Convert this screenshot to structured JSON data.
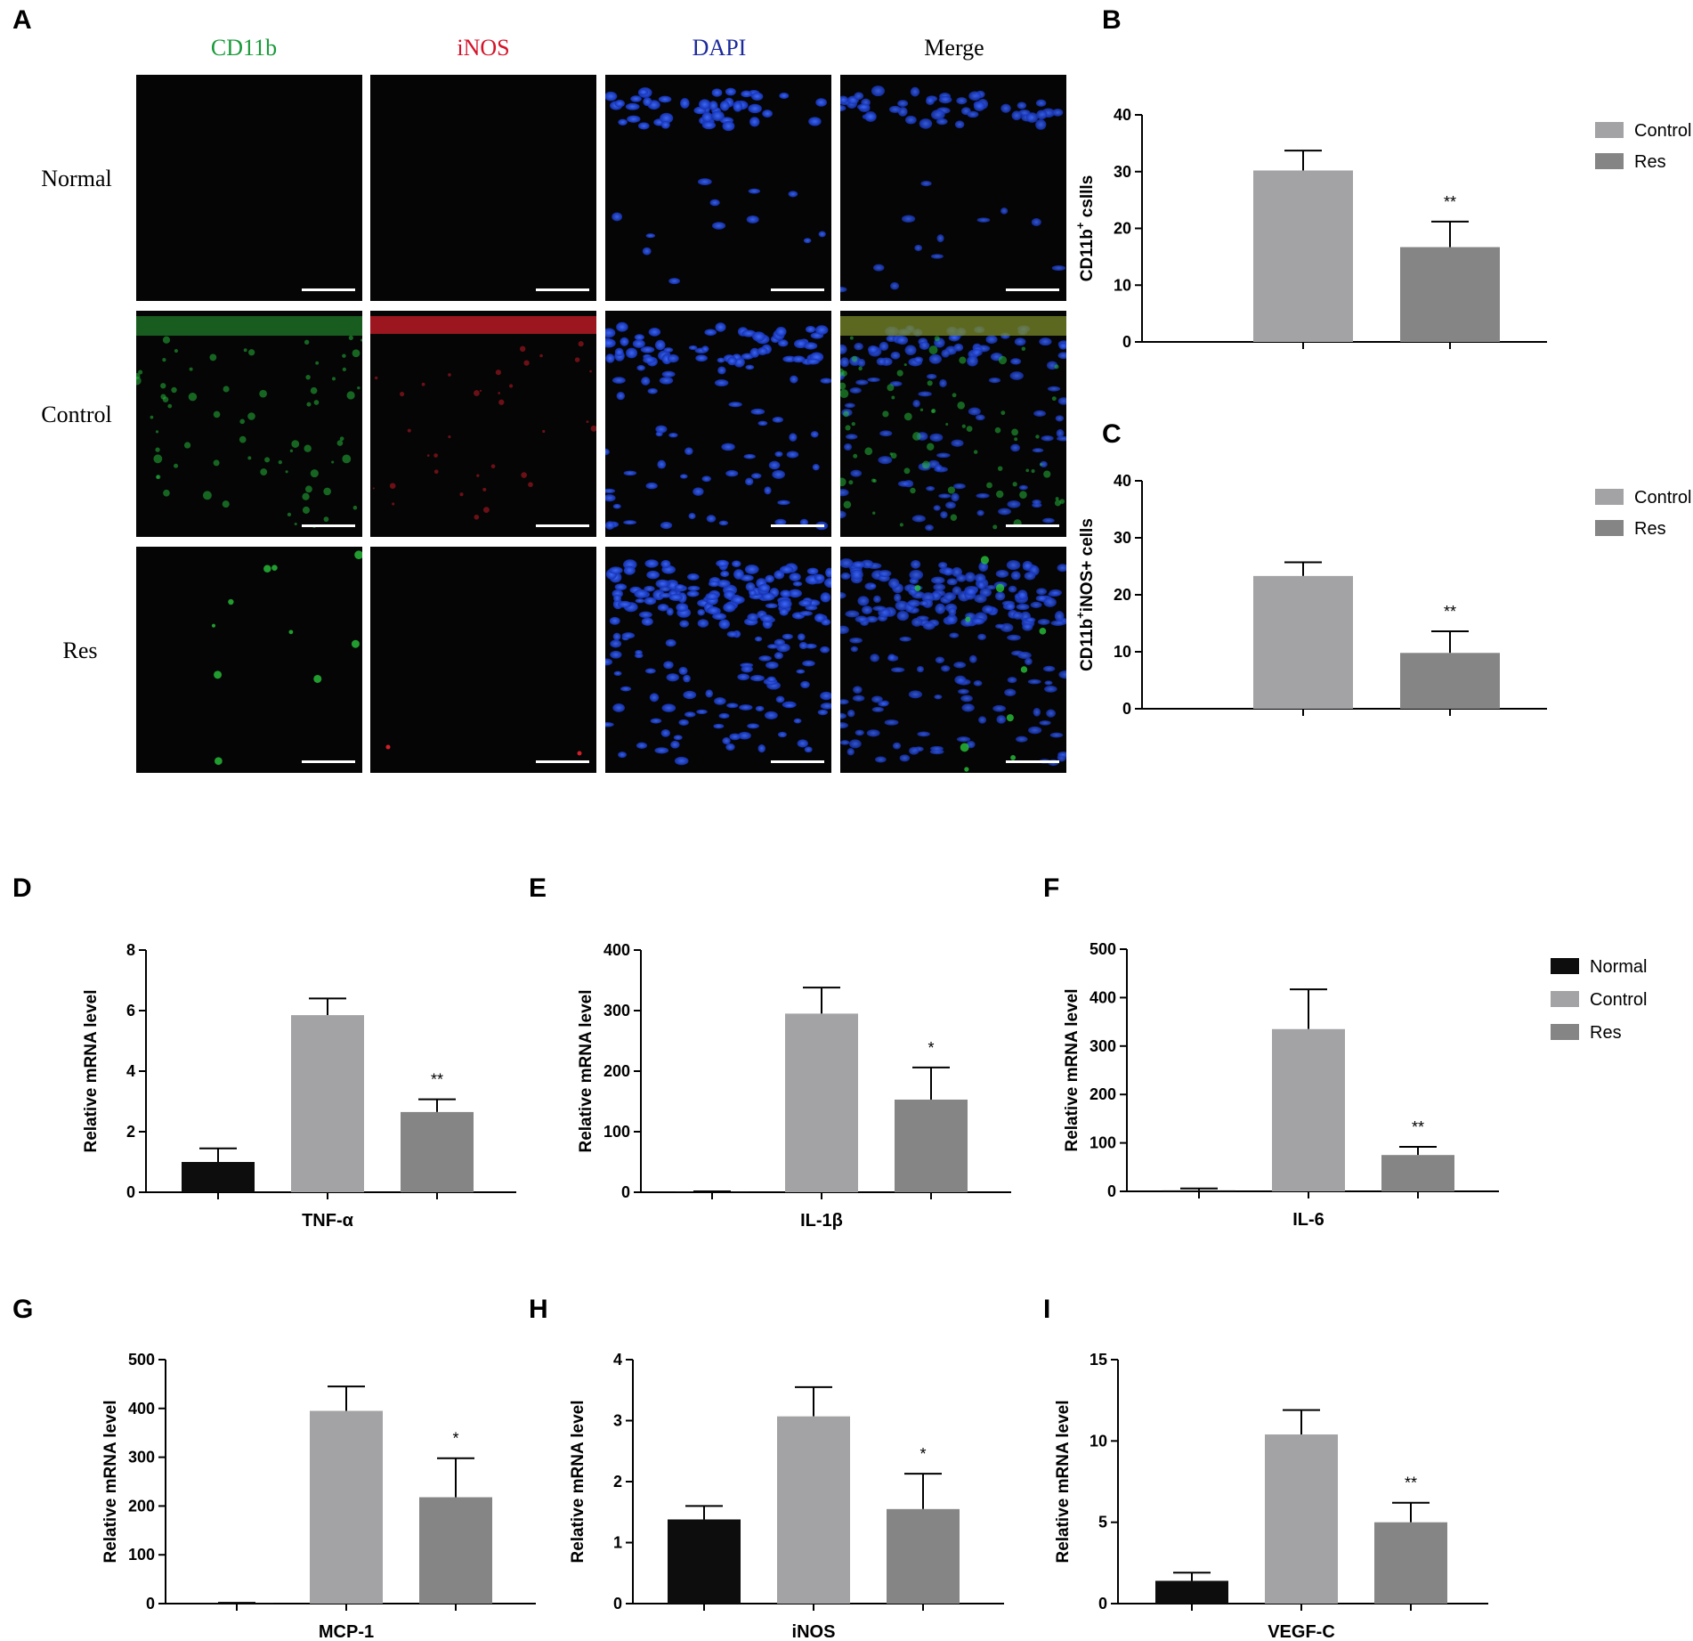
{
  "figure": {
    "panel_labels": [
      "A",
      "B",
      "C",
      "D",
      "E",
      "F",
      "G",
      "H",
      "I"
    ],
    "micro_columns": [
      {
        "label": "CD11b",
        "color": "#1a9a3a"
      },
      {
        "label": "iNOS",
        "color": "#d4142a"
      },
      {
        "label": "DAPI",
        "color": "#1c2a9c"
      },
      {
        "label": "Merge",
        "color": "#000000"
      }
    ],
    "micro_rows": [
      "Normal",
      "Control",
      "Res"
    ]
  },
  "colors": {
    "Normal": "#0d0d0d",
    "Control": "#a3a3a6",
    "Res": "#858585"
  },
  "chart_data": [
    {
      "panel": "B",
      "type": "bar",
      "ylabel_main": "CD11b",
      "ylabel_sup": "+",
      "ylabel_rest": " csllls",
      "ylim": [
        0,
        40
      ],
      "yticks": [
        0,
        10,
        20,
        30,
        40
      ],
      "categories": [
        "Control",
        "Res"
      ],
      "values": [
        30.2,
        16.7
      ],
      "errors": [
        3.5,
        4.5
      ],
      "annotations": [
        "",
        "**"
      ],
      "legend": [
        "Control",
        "Res"
      ],
      "xlabel": ""
    },
    {
      "panel": "C",
      "type": "bar",
      "ylabel_main": "CD11b",
      "ylabel_sup": "+",
      "ylabel_rest": "iNOS+ cells",
      "ylim": [
        0,
        40
      ],
      "yticks": [
        0,
        10,
        20,
        30,
        40
      ],
      "categories": [
        "Control",
        "Res"
      ],
      "values": [
        23.3,
        9.8
      ],
      "errors": [
        2.4,
        3.8
      ],
      "annotations": [
        "",
        "**"
      ],
      "legend": [
        "Control",
        "Res"
      ],
      "xlabel": ""
    },
    {
      "panel": "D",
      "type": "bar",
      "ylabel": "Relative mRNA level",
      "xlabel": "TNF-α",
      "ylim": [
        0,
        8
      ],
      "yticks": [
        0,
        2,
        4,
        6,
        8
      ],
      "categories": [
        "Normal",
        "Control",
        "Res"
      ],
      "values": [
        1.0,
        5.85,
        2.65
      ],
      "errors": [
        0.45,
        0.55,
        0.42
      ],
      "annotations": [
        "",
        "",
        "**"
      ]
    },
    {
      "panel": "E",
      "type": "bar",
      "ylabel": "Relative mRNA level",
      "xlabel": "IL-1β",
      "ylim": [
        0,
        400
      ],
      "yticks": [
        0,
        100,
        200,
        300,
        400
      ],
      "categories": [
        "Normal",
        "Control",
        "Res"
      ],
      "values": [
        1,
        295,
        153
      ],
      "errors": [
        0.5,
        43,
        53
      ],
      "annotations": [
        "",
        "",
        "*"
      ]
    },
    {
      "panel": "F",
      "type": "bar",
      "ylabel": "Relative mRNA level",
      "xlabel": "IL-6",
      "ylim": [
        0,
        500
      ],
      "yticks": [
        0,
        100,
        200,
        300,
        400,
        500
      ],
      "categories": [
        "Normal",
        "Control",
        "Res"
      ],
      "values": [
        2,
        335,
        75
      ],
      "errors": [
        4,
        82,
        17
      ],
      "annotations": [
        "",
        "",
        "**"
      ],
      "legend": [
        "Normal",
        "Control",
        "Res"
      ]
    },
    {
      "panel": "G",
      "type": "bar",
      "ylabel": "Relative mRNA level",
      "xlabel": "MCP-1",
      "ylim": [
        0,
        500
      ],
      "yticks": [
        0,
        100,
        200,
        300,
        400,
        500
      ],
      "categories": [
        "Normal",
        "Control",
        "Res"
      ],
      "values": [
        1,
        395,
        218
      ],
      "errors": [
        0.5,
        50,
        80
      ],
      "annotations": [
        "",
        "",
        "*"
      ]
    },
    {
      "panel": "H",
      "type": "bar",
      "ylabel": "Relative mRNA level",
      "xlabel": "iNOS",
      "ylim": [
        0,
        4
      ],
      "yticks": [
        0,
        1,
        2,
        3,
        4
      ],
      "categories": [
        "Normal",
        "Control",
        "Res"
      ],
      "values": [
        1.38,
        3.07,
        1.55
      ],
      "errors": [
        0.22,
        0.48,
        0.58
      ],
      "annotations": [
        "",
        "",
        "*"
      ]
    },
    {
      "panel": "I",
      "type": "bar",
      "ylabel": "Relative mRNA level",
      "xlabel": "VEGF-C",
      "ylim": [
        0,
        15
      ],
      "yticks": [
        0,
        5,
        10,
        15
      ],
      "categories": [
        "Normal",
        "Control",
        "Res"
      ],
      "values": [
        1.4,
        10.4,
        5.0
      ],
      "errors": [
        0.5,
        1.5,
        1.2
      ],
      "annotations": [
        "",
        "",
        "**"
      ]
    }
  ]
}
